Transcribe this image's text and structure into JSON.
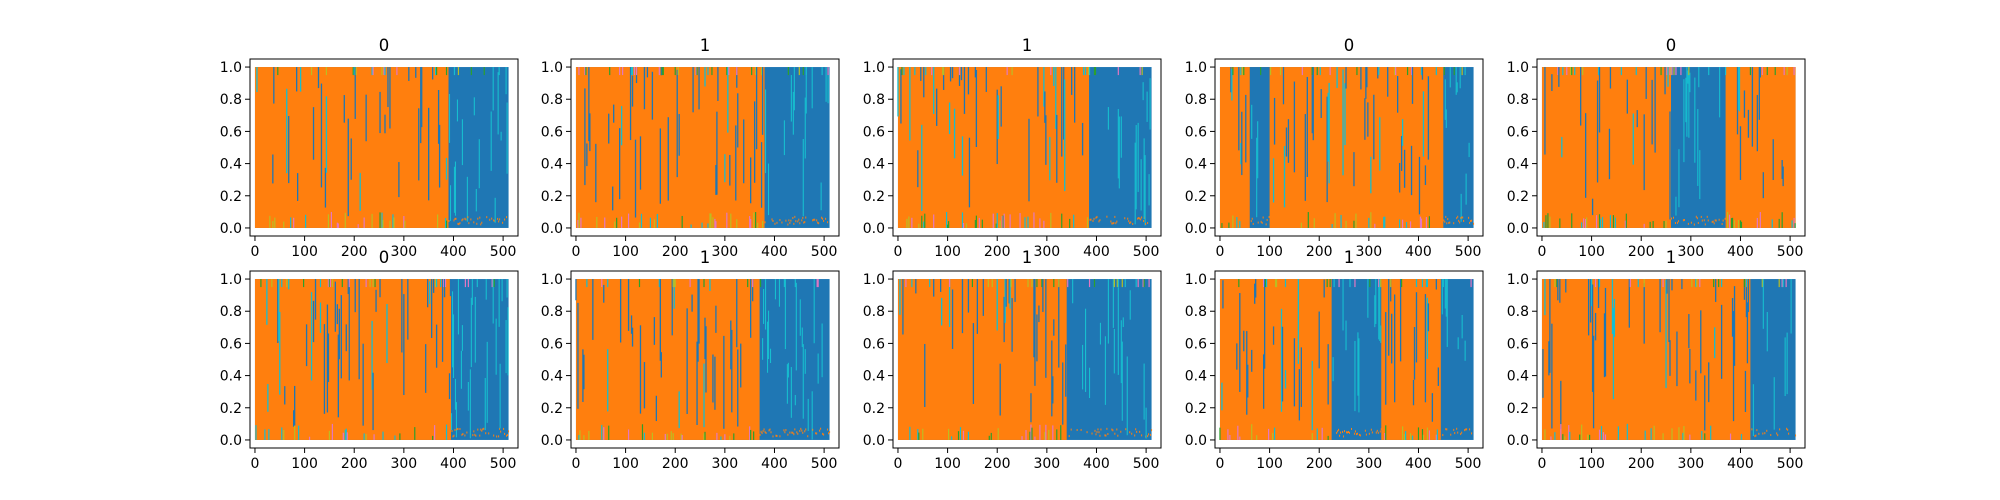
{
  "chart_data": {
    "type": "line",
    "layout": {
      "rows": 2,
      "cols": 5
    },
    "xlim": [
      -10,
      530
    ],
    "ylim": [
      -0.05,
      1.05
    ],
    "xticks": [
      0,
      100,
      200,
      300,
      400,
      500
    ],
    "xtick_labels": [
      "0",
      "100",
      "200",
      "300",
      "400",
      "500"
    ],
    "yticks": [
      0.0,
      0.2,
      0.4,
      0.6,
      0.8,
      1.0
    ],
    "ytick_labels": [
      "0.0",
      "0.2",
      "0.4",
      "0.6",
      "0.8",
      "1.0"
    ],
    "n_points": 512,
    "grid": false,
    "series_colors": {
      "blue": "#1f77b4",
      "orange": "#ff7f0e",
      "cyan": "#17becf",
      "olive": "#bcbd22",
      "green": "#2ca02c",
      "pink": "#e377c2"
    },
    "panels": [
      {
        "title": "0",
        "orange_dominant_until": 390,
        "blue_block": [
          390,
          512
        ]
      },
      {
        "title": "1",
        "orange_dominant_until": 380,
        "blue_block": [
          380,
          512
        ]
      },
      {
        "title": "1",
        "orange_dominant_until": 385,
        "blue_block": [
          385,
          512
        ]
      },
      {
        "title": "0",
        "orange_dominant_until": 450,
        "blue_block": [
          450,
          512
        ],
        "blue_gap": [
          60,
          100
        ]
      },
      {
        "title": "0",
        "orange_dominant_until": 260,
        "blue_block": [
          260,
          370
        ]
      },
      {
        "title": "0",
        "orange_dominant_until": 395,
        "blue_block": [
          395,
          512
        ]
      },
      {
        "title": "1",
        "orange_dominant_until": 370,
        "blue_block": [
          370,
          512
        ]
      },
      {
        "title": "1",
        "orange_dominant_until": 340,
        "blue_block": [
          340,
          512
        ]
      },
      {
        "title": "1",
        "orange_dominant_until": 445,
        "blue_block": [
          445,
          512
        ],
        "blue_gap": [
          225,
          325
        ]
      },
      {
        "title": "1",
        "orange_dominant_until": 420,
        "blue_block": [
          420,
          512
        ]
      }
    ]
  }
}
